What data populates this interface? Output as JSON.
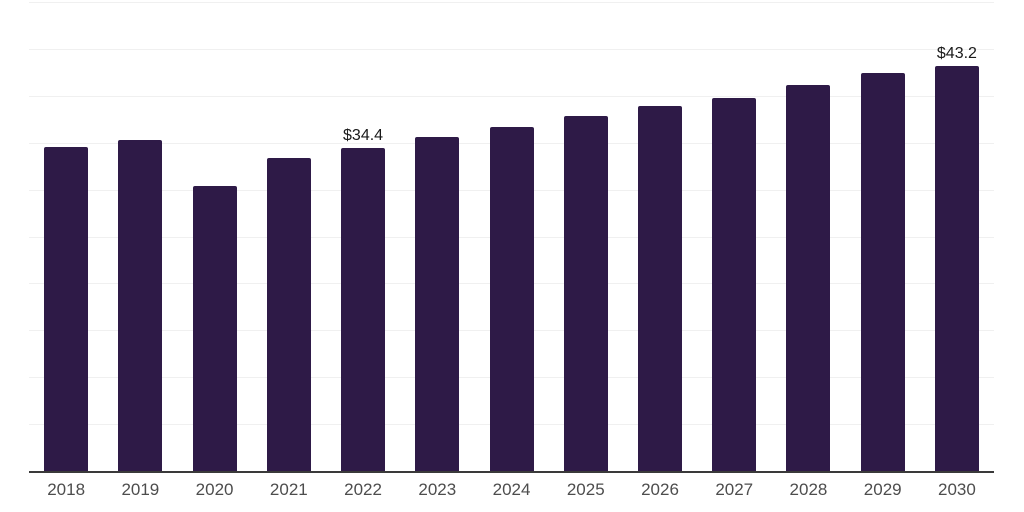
{
  "chart_data": {
    "type": "bar",
    "title": "",
    "xlabel": "",
    "ylabel": "",
    "categories": [
      "2018",
      "2019",
      "2020",
      "2021",
      "2022",
      "2023",
      "2024",
      "2025",
      "2026",
      "2027",
      "2028",
      "2029",
      "2030"
    ],
    "values": [
      34.5,
      35.3,
      30.4,
      33.4,
      34.4,
      35.6,
      36.7,
      37.8,
      38.9,
      39.8,
      41.2,
      42.4,
      43.2
    ],
    "data_labels": [
      "",
      "",
      "",
      "",
      "$34.4",
      "",
      "",
      "",
      "",
      "",
      "",
      "",
      "$43.2"
    ],
    "ylim": [
      0,
      50
    ],
    "gridline_step_value": 5,
    "grid": "horizontal-light",
    "legend_position": "none",
    "value_unit_prefix": "$",
    "colors": {
      "bar": "#2e1a47",
      "gridline": "#f0f0f0",
      "axis_line": "#3a3a3a",
      "tick_label": "#4d4d4d",
      "data_label": "#1a1a1a",
      "background": "#ffffff"
    }
  }
}
